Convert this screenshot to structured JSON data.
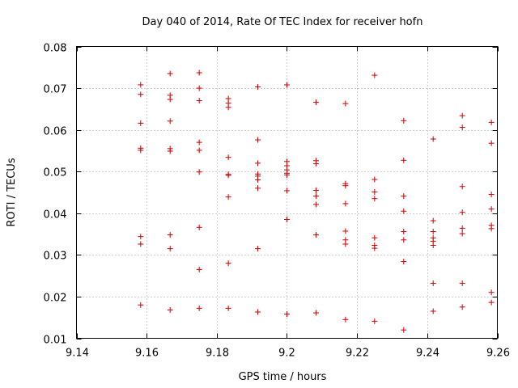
{
  "chart_data": {
    "type": "scatter",
    "title": "Day 040 of 2014, Rate Of TEC Index for receiver hofn",
    "xlabel": "GPS time / hours",
    "ylabel": "ROTI / TECUs",
    "xlim": [
      9.14,
      9.26
    ],
    "ylim": [
      0.01,
      0.08
    ],
    "xticks": [
      9.14,
      9.16,
      9.18,
      9.2,
      9.22,
      9.24,
      9.26
    ],
    "xtick_labels": [
      "9.14",
      "9.16",
      "9.18",
      "9.2",
      "9.22",
      "9.24",
      "9.26"
    ],
    "yticks": [
      0.01,
      0.02,
      0.03,
      0.04,
      0.05,
      0.06,
      0.07,
      0.08
    ],
    "ytick_labels": [
      "0.01",
      "0.02",
      "0.03",
      "0.04",
      "0.05",
      "0.06",
      "0.07",
      "0.08"
    ],
    "grid": true,
    "marker": "+",
    "color": "#cc0000",
    "series": [
      {
        "name": "ROTI",
        "points": [
          [
            9.1583,
            0.0708
          ],
          [
            9.1583,
            0.0685
          ],
          [
            9.1583,
            0.0616
          ],
          [
            9.1583,
            0.0556
          ],
          [
            9.1583,
            0.0551
          ],
          [
            9.1583,
            0.0344
          ],
          [
            9.1583,
            0.0326
          ],
          [
            9.1583,
            0.018
          ],
          [
            9.1667,
            0.0735
          ],
          [
            9.1667,
            0.0683
          ],
          [
            9.1667,
            0.0673
          ],
          [
            9.1667,
            0.0621
          ],
          [
            9.1667,
            0.0555
          ],
          [
            9.1667,
            0.0549
          ],
          [
            9.1667,
            0.0348
          ],
          [
            9.1667,
            0.0315
          ],
          [
            9.1667,
            0.0168
          ],
          [
            9.175,
            0.0737
          ],
          [
            9.175,
            0.07
          ],
          [
            9.175,
            0.067
          ],
          [
            9.175,
            0.057
          ],
          [
            9.175,
            0.0551
          ],
          [
            9.175,
            0.0499
          ],
          [
            9.175,
            0.0366
          ],
          [
            9.175,
            0.0265
          ],
          [
            9.175,
            0.0172
          ],
          [
            9.1833,
            0.0675
          ],
          [
            9.1833,
            0.0664
          ],
          [
            9.1833,
            0.0654
          ],
          [
            9.1833,
            0.0534
          ],
          [
            9.1833,
            0.0493
          ],
          [
            9.1833,
            0.0491
          ],
          [
            9.1833,
            0.0439
          ],
          [
            9.1833,
            0.028
          ],
          [
            9.1833,
            0.0172
          ],
          [
            9.1917,
            0.0703
          ],
          [
            9.1917,
            0.0576
          ],
          [
            9.1917,
            0.052
          ],
          [
            9.1917,
            0.0494
          ],
          [
            9.1917,
            0.0489
          ],
          [
            9.1917,
            0.048
          ],
          [
            9.1917,
            0.046
          ],
          [
            9.1917,
            0.0315
          ],
          [
            9.1917,
            0.0163
          ],
          [
            9.2,
            0.0708
          ],
          [
            9.2,
            0.0524
          ],
          [
            9.2,
            0.0514
          ],
          [
            9.2,
            0.0504
          ],
          [
            9.2,
            0.0496
          ],
          [
            9.2,
            0.0492
          ],
          [
            9.2,
            0.0454
          ],
          [
            9.2,
            0.0385
          ],
          [
            9.2,
            0.0158
          ],
          [
            9.2083,
            0.0666
          ],
          [
            9.2083,
            0.0526
          ],
          [
            9.2083,
            0.0519
          ],
          [
            9.2083,
            0.0455
          ],
          [
            9.2083,
            0.0441
          ],
          [
            9.2083,
            0.0421
          ],
          [
            9.2083,
            0.0348
          ],
          [
            9.2083,
            0.0161
          ],
          [
            9.2167,
            0.0663
          ],
          [
            9.2167,
            0.0471
          ],
          [
            9.2167,
            0.0466
          ],
          [
            9.2167,
            0.0423
          ],
          [
            9.2167,
            0.0357
          ],
          [
            9.2167,
            0.0336
          ],
          [
            9.2167,
            0.0326
          ],
          [
            9.2167,
            0.0145
          ],
          [
            9.225,
            0.0731
          ],
          [
            9.225,
            0.0481
          ],
          [
            9.225,
            0.0451
          ],
          [
            9.225,
            0.0435
          ],
          [
            9.225,
            0.0341
          ],
          [
            9.225,
            0.0323
          ],
          [
            9.225,
            0.0316
          ],
          [
            9.225,
            0.0141
          ],
          [
            9.2333,
            0.0622
          ],
          [
            9.2333,
            0.0527
          ],
          [
            9.2333,
            0.0441
          ],
          [
            9.2333,
            0.0405
          ],
          [
            9.2333,
            0.0356
          ],
          [
            9.2333,
            0.0336
          ],
          [
            9.2333,
            0.0284
          ],
          [
            9.2333,
            0.012
          ],
          [
            9.2417,
            0.0578
          ],
          [
            9.2417,
            0.0382
          ],
          [
            9.2417,
            0.0356
          ],
          [
            9.2417,
            0.0341
          ],
          [
            9.2417,
            0.0333
          ],
          [
            9.2417,
            0.0323
          ],
          [
            9.2417,
            0.0232
          ],
          [
            9.2417,
            0.0165
          ],
          [
            9.25,
            0.0634
          ],
          [
            9.25,
            0.0606
          ],
          [
            9.25,
            0.0464
          ],
          [
            9.25,
            0.0402
          ],
          [
            9.25,
            0.0364
          ],
          [
            9.25,
            0.0351
          ],
          [
            9.25,
            0.0232
          ],
          [
            9.25,
            0.0175
          ],
          [
            9.2583,
            0.0618
          ],
          [
            9.2583,
            0.0568
          ],
          [
            9.2583,
            0.0445
          ],
          [
            9.2583,
            0.041
          ],
          [
            9.2583,
            0.0371
          ],
          [
            9.2583,
            0.0363
          ],
          [
            9.2583,
            0.021
          ],
          [
            9.2583,
            0.0186
          ]
        ]
      }
    ]
  }
}
